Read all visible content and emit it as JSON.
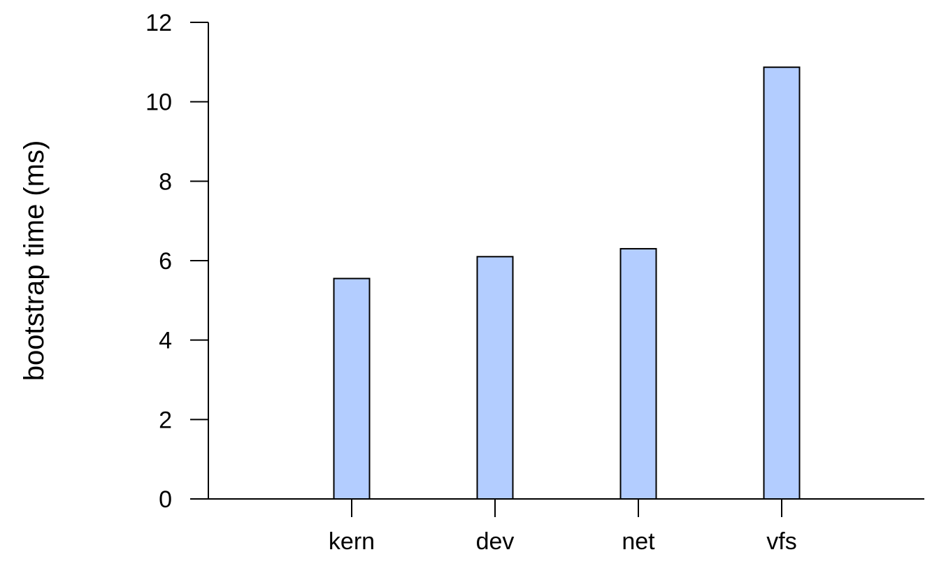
{
  "chart_data": {
    "type": "bar",
    "categories": [
      "kern",
      "dev",
      "net",
      "vfs"
    ],
    "values": [
      5.55,
      6.1,
      6.3,
      10.87
    ],
    "title": "",
    "xlabel": "",
    "ylabel": "bootstrap time (ms)",
    "ylim": [
      0,
      12
    ],
    "yticks": [
      0,
      2,
      4,
      6,
      8,
      10,
      12
    ],
    "bar_color": "#b3cdff",
    "grid": false,
    "legend": "none"
  }
}
